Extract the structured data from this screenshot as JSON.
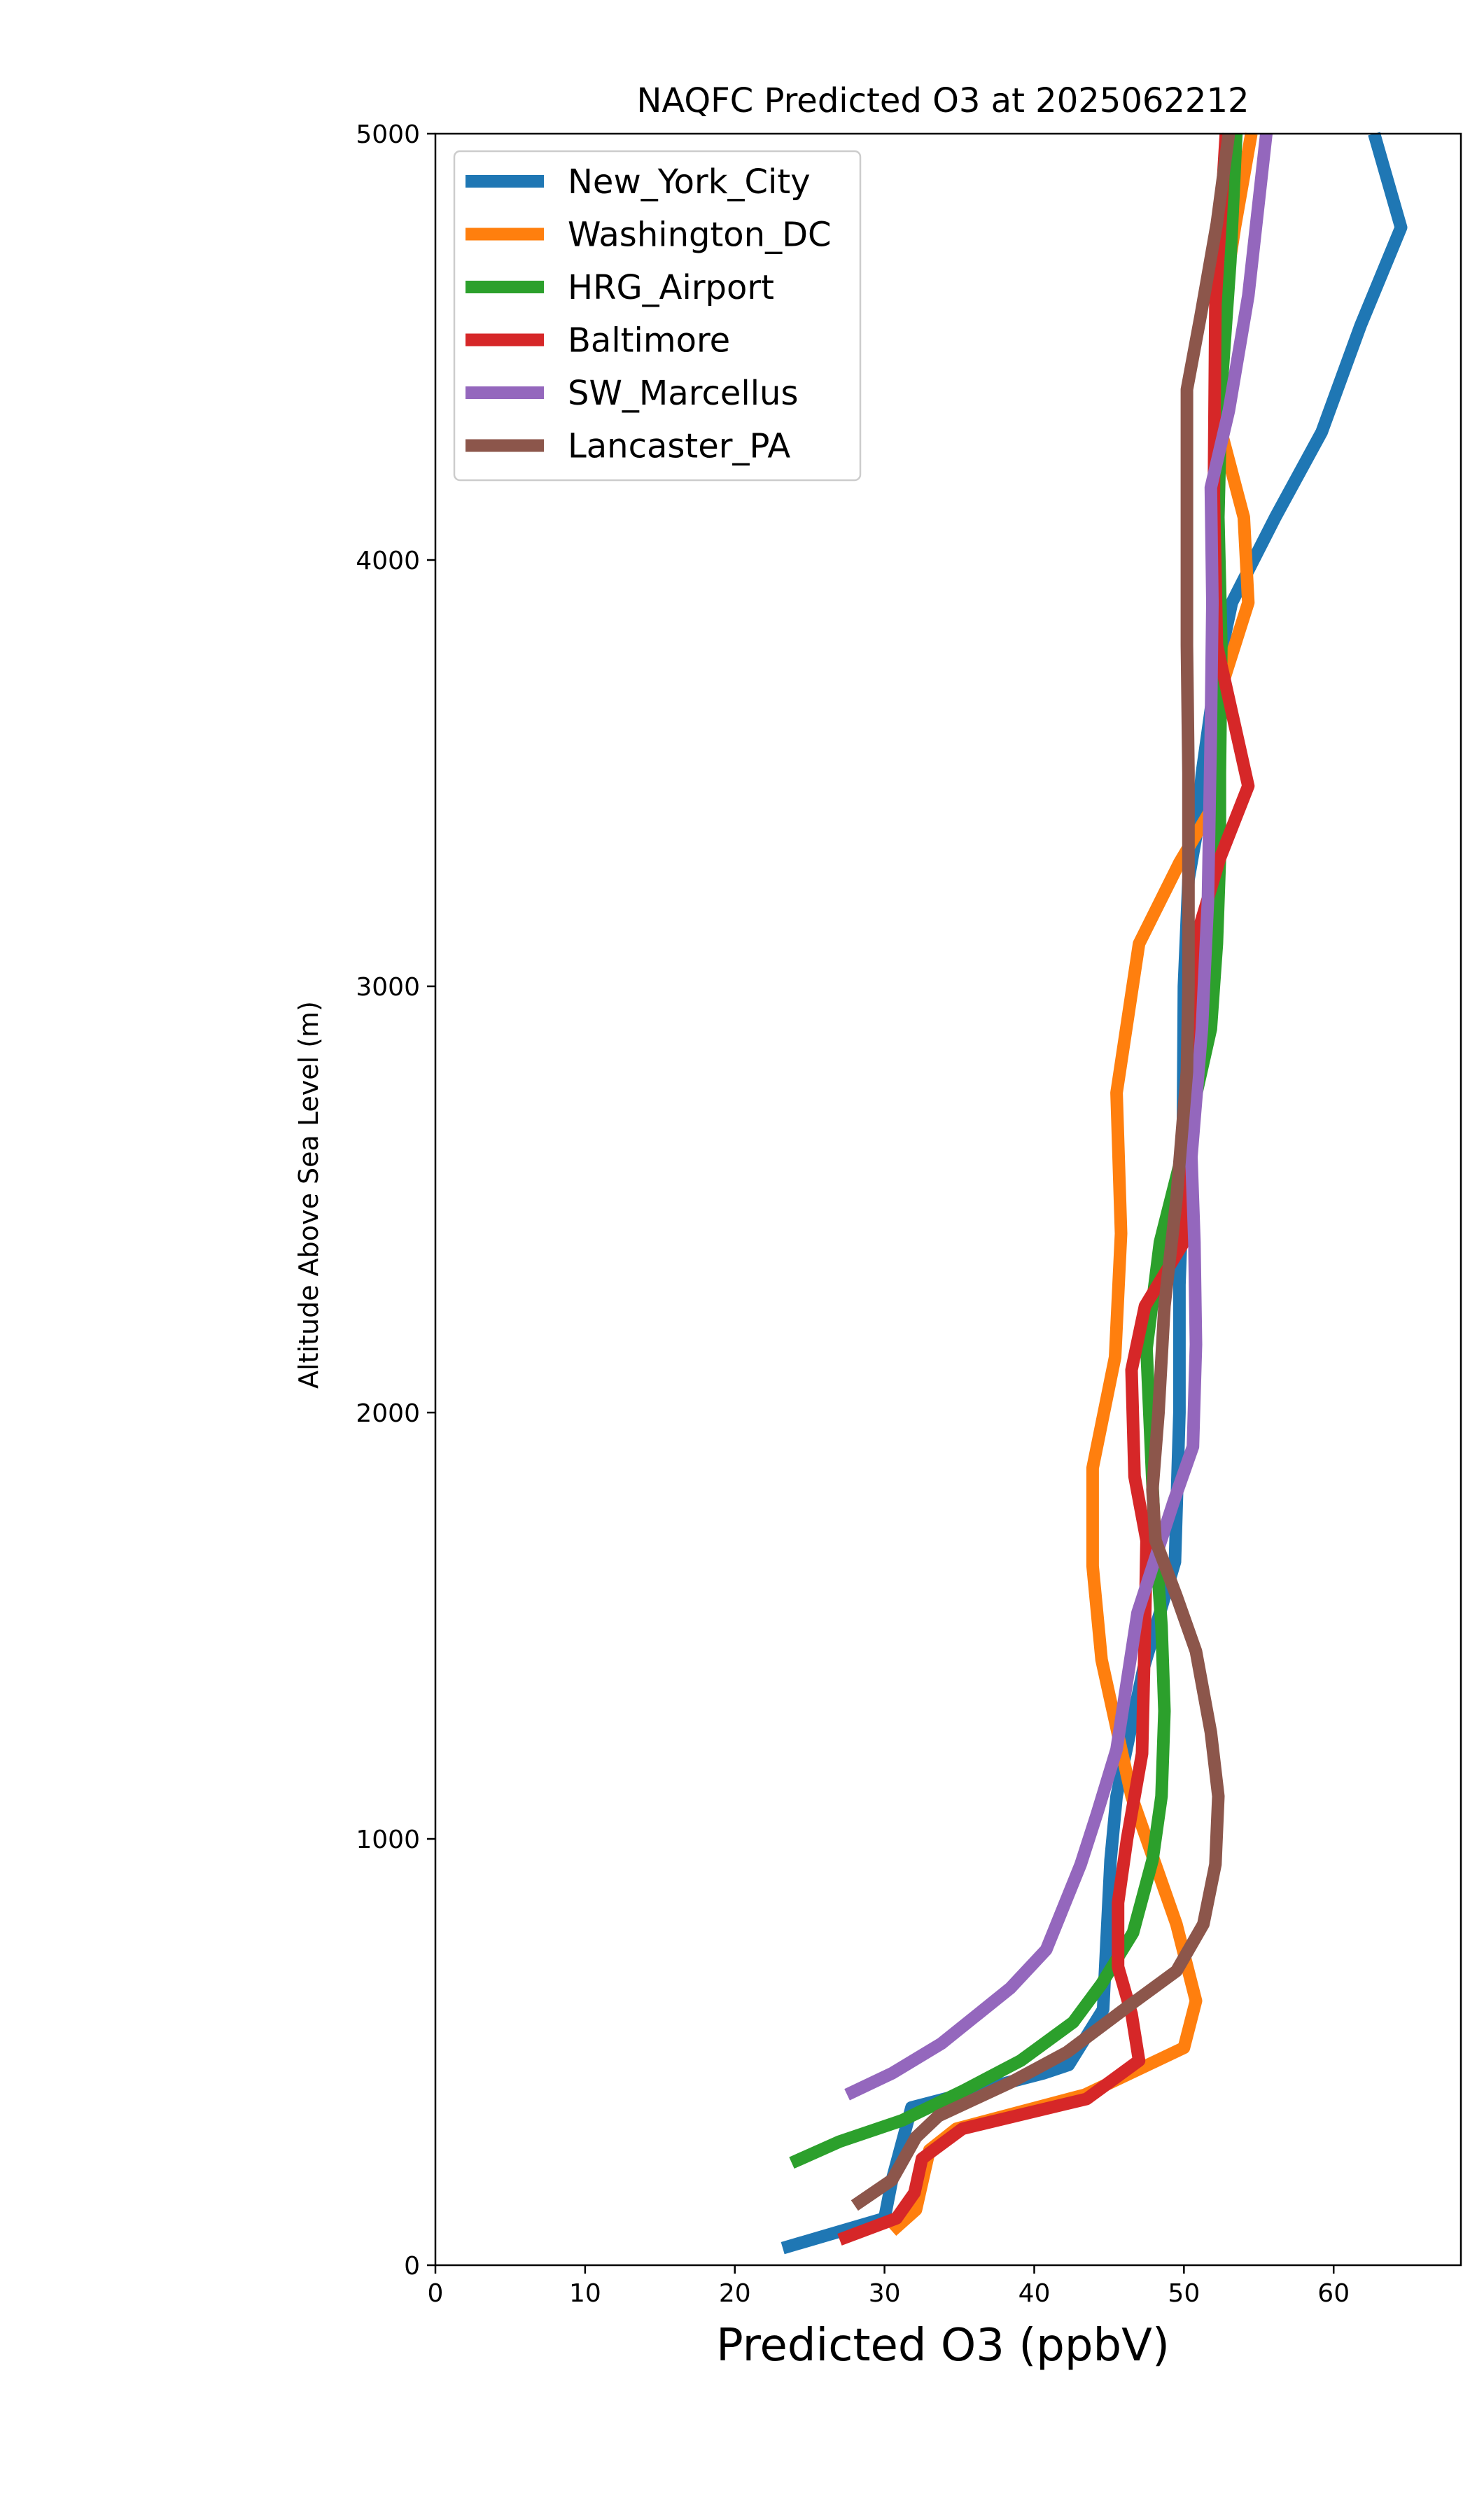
{
  "chart_data": {
    "type": "line",
    "title": "NAQFC Predicted O3 at 2025062212",
    "xlabel": "Predicted O3 (ppbV)",
    "ylabel": "Altitude Above Sea Level (m)",
    "xlim": [
      0,
      68.5
    ],
    "ylim": [
      0,
      5000
    ],
    "xticks": [
      0,
      10,
      20,
      30,
      40,
      50,
      60
    ],
    "yticks": [
      0,
      1000,
      2000,
      3000,
      4000,
      5000
    ],
    "grid": false,
    "legend_position": "upper-left",
    "series": [
      {
        "name": "New_York_City",
        "color": "#1f77b4",
        "x": [
          23.2,
          30.0,
          30.5,
          31.8,
          40.6,
          42.3,
          44.6,
          45.1,
          45.5,
          47.3,
          49.4,
          49.7,
          49.7,
          49.9,
          50.0,
          50.3,
          50.8,
          51.2,
          52.0,
          53.2,
          56.1,
          59.2,
          61.8,
          64.5,
          62.7
        ],
        "y": [
          40,
          110,
          200,
          370,
          450,
          470,
          600,
          950,
          1100,
          1400,
          1650,
          2000,
          2300,
          2500,
          3000,
          3250,
          3350,
          3500,
          3700,
          3900,
          4100,
          4300,
          4550,
          4780,
          5000
        ]
      },
      {
        "name": "Washington_DC",
        "color": "#ff7f0e",
        "x": [
          30.5,
          32.1,
          33.0,
          34.8,
          43.4,
          50.0,
          50.8,
          49.5,
          46.5,
          44.5,
          43.9,
          43.9,
          45.4,
          45.8,
          45.5,
          47.0,
          49.7,
          51.9,
          52.5,
          54.3,
          54.0,
          52.5,
          52.4,
          53.4,
          54.5
        ],
        "y": [
          80,
          130,
          270,
          320,
          400,
          510,
          620,
          800,
          1100,
          1420,
          1640,
          1870,
          2130,
          2420,
          2750,
          3100,
          3290,
          3420,
          3700,
          3900,
          4100,
          4300,
          4550,
          4780,
          5000
        ]
      },
      {
        "name": "HRG_Airport",
        "color": "#2ca02c",
        "x": [
          23.8,
          27.0,
          31.2,
          35.3,
          39.1,
          42.6,
          44.5,
          46.6,
          47.9,
          48.5,
          48.7,
          48.5,
          48.0,
          47.5,
          48.4,
          50.2,
          51.8,
          52.2,
          52.4,
          52.4,
          52.5,
          52.3,
          52.5,
          53.1,
          53.5
        ],
        "y": [
          240,
          290,
          340,
          410,
          480,
          570,
          660,
          780,
          950,
          1100,
          1300,
          1500,
          1750,
          2150,
          2400,
          2650,
          2900,
          3100,
          3300,
          3500,
          3800,
          4100,
          4400,
          4700,
          5000
        ]
      },
      {
        "name": "Baltimore",
        "color": "#d62728",
        "x": [
          27.0,
          30.8,
          32.0,
          32.5,
          35.2,
          43.5,
          47.0,
          46.5,
          45.6,
          45.6,
          46.2,
          47.2,
          47.4,
          47.5,
          46.7,
          46.5,
          47.4,
          50.0,
          50.0,
          50.7,
          52.4,
          54.3,
          52.2,
          52.0,
          52.1,
          52.8
        ],
        "y": [
          60,
          110,
          170,
          250,
          320,
          390,
          480,
          590,
          700,
          850,
          1000,
          1200,
          1500,
          1700,
          1850,
          2100,
          2250,
          2400,
          2500,
          3100,
          3300,
          3470,
          3800,
          4150,
          4600,
          5000
        ]
      },
      {
        "name": "SW_Marcellus",
        "color": "#9467bd",
        "x": [
          27.5,
          30.5,
          33.8,
          38.4,
          40.8,
          43.1,
          44.2,
          45.5,
          46.9,
          49.3,
          50.6,
          50.8,
          50.7,
          50.5,
          51.2,
          51.6,
          51.8,
          51.9,
          51.8,
          53.0,
          54.3,
          55.5
        ],
        "y": [
          400,
          450,
          520,
          650,
          740,
          940,
          1060,
          1210,
          1530,
          1790,
          1920,
          2160,
          2400,
          2600,
          2900,
          3200,
          3600,
          3900,
          4170,
          4350,
          4620,
          5000
        ]
      },
      {
        "name": "Lancaster_PA",
        "color": "#8c564b",
        "x": [
          28.0,
          30.5,
          31.3,
          32.1,
          33.6,
          38.5,
          42.2,
          46.0,
          49.5,
          51.3,
          52.1,
          52.3,
          51.8,
          50.8,
          49.5,
          48.1,
          47.9,
          48.3,
          48.7,
          49.5,
          50.2,
          50.3,
          50.3,
          50.3,
          50.2,
          50.2,
          51.1,
          52.2,
          53.0
        ],
        "y": [
          140,
          200,
          250,
          300,
          350,
          430,
          500,
          600,
          690,
          800,
          940,
          1100,
          1250,
          1440,
          1570,
          1700,
          1820,
          2000,
          2250,
          2500,
          2800,
          3000,
          3200,
          3500,
          3800,
          4400,
          4570,
          4790,
          5000
        ]
      }
    ]
  }
}
